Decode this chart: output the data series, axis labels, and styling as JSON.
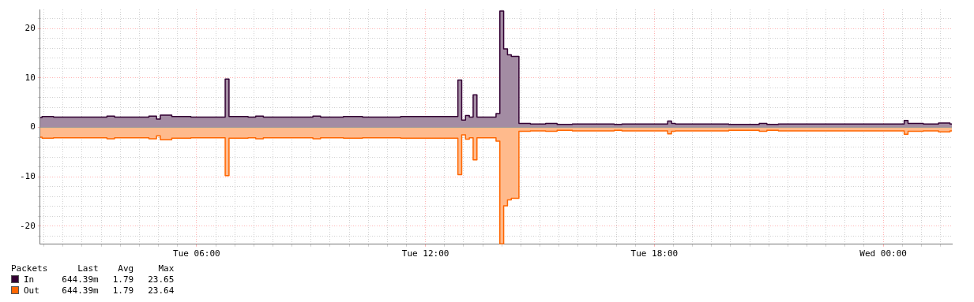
{
  "chart_data": {
    "type": "area",
    "categories": [
      null,
      null,
      null,
      null,
      null,
      null,
      null,
      null,
      null,
      null,
      null,
      null,
      null,
      null,
      null,
      null,
      null,
      null,
      null,
      null,
      null,
      null,
      null,
      null,
      null,
      null,
      null,
      null,
      null,
      null,
      null,
      null,
      null,
      null,
      null,
      null,
      null,
      null,
      null,
      null,
      null,
      "Tue 06:00",
      null,
      null,
      null,
      null,
      null,
      null,
      null,
      null,
      null,
      null,
      null,
      null,
      null,
      null,
      null,
      null,
      null,
      null,
      null,
      null,
      null,
      null,
      null,
      null,
      null,
      null,
      null,
      null,
      null,
      null,
      null,
      null,
      null,
      null,
      null,
      null,
      null,
      null,
      null,
      null,
      null,
      null,
      null,
      null,
      null,
      null,
      null,
      null,
      null,
      null,
      null,
      null,
      null,
      null,
      null,
      null,
      null,
      null,
      null,
      "Tue 12:00",
      null,
      null,
      null,
      null,
      null,
      null,
      null,
      null,
      null,
      null,
      null,
      null,
      null,
      null,
      null,
      null,
      null,
      null,
      null,
      null,
      null,
      null,
      null,
      null,
      null,
      null,
      null,
      null,
      null,
      null,
      null,
      null,
      null,
      null,
      null,
      null,
      null,
      null,
      null,
      null,
      null,
      null,
      null,
      null,
      null,
      null,
      null,
      null,
      null,
      null,
      null,
      null,
      null,
      null,
      null,
      null,
      null,
      null,
      null,
      "Tue 18:00",
      null,
      null,
      null,
      null,
      null,
      null,
      null,
      null,
      null,
      null,
      null,
      null,
      null,
      null,
      null,
      null,
      null,
      null,
      null,
      null,
      null,
      null,
      null,
      null,
      null,
      null,
      null,
      null,
      null,
      null,
      null,
      null,
      null,
      null,
      null,
      null,
      null,
      null,
      null,
      null,
      null,
      null,
      null,
      null,
      null,
      null,
      null,
      null,
      null,
      null,
      null,
      null,
      null,
      null,
      null,
      null,
      null,
      null,
      null,
      "Wed 00:00",
      null,
      null,
      null,
      null,
      null,
      null,
      null,
      null,
      null,
      null,
      null,
      null,
      null,
      null,
      null,
      null,
      null,
      null
    ],
    "series": [
      {
        "name": "In",
        "color": "#330033",
        "values": [
          2.0,
          2.2,
          2.2,
          2.2,
          2.1,
          2.1,
          2.1,
          2.1,
          2.1,
          2.1,
          2.1,
          2.1,
          2.1,
          2.1,
          2.1,
          2.1,
          2.1,
          2.1,
          2.3,
          2.3,
          2.1,
          2.1,
          2.1,
          2.1,
          2.1,
          2.1,
          2.1,
          2.1,
          2.1,
          2.3,
          2.3,
          1.7,
          2.5,
          2.5,
          2.5,
          2.2,
          2.2,
          2.2,
          2.2,
          2.2,
          2.1,
          2.1,
          2.1,
          2.1,
          2.1,
          2.1,
          2.1,
          2.1,
          2.1,
          9.8,
          2.2,
          2.2,
          2.2,
          2.2,
          2.2,
          2.1,
          2.1,
          2.3,
          2.3,
          2.1,
          2.1,
          2.1,
          2.1,
          2.1,
          2.1,
          2.1,
          2.1,
          2.1,
          2.1,
          2.1,
          2.1,
          2.1,
          2.3,
          2.3,
          2.1,
          2.1,
          2.1,
          2.1,
          2.1,
          2.1,
          2.2,
          2.2,
          2.2,
          2.2,
          2.2,
          2.1,
          2.1,
          2.1,
          2.1,
          2.1,
          2.1,
          2.1,
          2.1,
          2.1,
          2.1,
          2.2,
          2.2,
          2.2,
          2.2,
          2.2,
          2.2,
          2.2,
          2.2,
          2.2,
          2.2,
          2.2,
          2.2,
          2.2,
          2.2,
          2.2,
          9.6,
          1.5,
          2.4,
          2.1,
          6.6,
          2.1,
          2.1,
          2.1,
          2.1,
          2.1,
          2.8,
          23.6,
          15.9,
          14.7,
          14.4,
          14.4,
          0.8,
          0.8,
          0.8,
          0.7,
          0.7,
          0.7,
          0.7,
          0.8,
          0.8,
          0.8,
          0.6,
          0.6,
          0.6,
          0.6,
          0.7,
          0.7,
          0.7,
          0.7,
          0.7,
          0.7,
          0.7,
          0.7,
          0.7,
          0.7,
          0.7,
          0.6,
          0.6,
          0.7,
          0.7,
          0.7,
          0.7,
          0.7,
          0.7,
          0.7,
          0.7,
          0.7,
          0.7,
          0.7,
          0.7,
          1.3,
          0.8,
          0.7,
          0.7,
          0.7,
          0.7,
          0.7,
          0.7,
          0.7,
          0.7,
          0.7,
          0.7,
          0.7,
          0.7,
          0.7,
          0.7,
          0.6,
          0.6,
          0.6,
          0.6,
          0.6,
          0.6,
          0.6,
          0.6,
          0.8,
          0.8,
          0.6,
          0.6,
          0.6,
          0.7,
          0.7,
          0.7,
          0.7,
          0.7,
          0.7,
          0.7,
          0.7,
          0.7,
          0.7,
          0.7,
          0.7,
          0.7,
          0.7,
          0.7,
          0.7,
          0.7,
          0.7,
          0.7,
          0.7,
          0.7,
          0.7,
          0.7,
          0.7,
          0.7,
          0.7,
          0.7,
          0.7,
          0.7,
          0.7,
          0.7,
          0.7,
          0.7,
          1.4,
          0.8,
          0.8,
          0.8,
          0.8,
          0.7,
          0.7,
          0.7,
          0.7,
          0.9,
          0.9,
          0.9,
          0.7
        ]
      },
      {
        "name": "Out",
        "color": "#ff6600",
        "values": [
          -2.0,
          -2.2,
          -2.2,
          -2.2,
          -2.1,
          -2.1,
          -2.1,
          -2.1,
          -2.1,
          -2.1,
          -2.1,
          -2.1,
          -2.1,
          -2.1,
          -2.1,
          -2.1,
          -2.1,
          -2.1,
          -2.3,
          -2.3,
          -2.1,
          -2.1,
          -2.1,
          -2.1,
          -2.1,
          -2.1,
          -2.1,
          -2.1,
          -2.1,
          -2.3,
          -2.3,
          -1.7,
          -2.5,
          -2.5,
          -2.5,
          -2.2,
          -2.2,
          -2.2,
          -2.2,
          -2.2,
          -2.1,
          -2.1,
          -2.1,
          -2.1,
          -2.1,
          -2.1,
          -2.1,
          -2.1,
          -2.1,
          -9.8,
          -2.2,
          -2.2,
          -2.2,
          -2.2,
          -2.2,
          -2.1,
          -2.1,
          -2.3,
          -2.3,
          -2.1,
          -2.1,
          -2.1,
          -2.1,
          -2.1,
          -2.1,
          -2.1,
          -2.1,
          -2.1,
          -2.1,
          -2.1,
          -2.1,
          -2.1,
          -2.3,
          -2.3,
          -2.1,
          -2.1,
          -2.1,
          -2.1,
          -2.1,
          -2.1,
          -2.2,
          -2.2,
          -2.2,
          -2.2,
          -2.2,
          -2.1,
          -2.1,
          -2.1,
          -2.1,
          -2.1,
          -2.1,
          -2.1,
          -2.1,
          -2.1,
          -2.1,
          -2.2,
          -2.2,
          -2.2,
          -2.2,
          -2.2,
          -2.2,
          -2.2,
          -2.2,
          -2.2,
          -2.2,
          -2.2,
          -2.2,
          -2.2,
          -2.2,
          -2.2,
          -9.6,
          -1.5,
          -2.4,
          -2.1,
          -6.6,
          -2.1,
          -2.1,
          -2.1,
          -2.1,
          -2.1,
          -2.8,
          -23.6,
          -15.9,
          -14.7,
          -14.4,
          -14.4,
          -0.8,
          -0.8,
          -0.8,
          -0.7,
          -0.7,
          -0.7,
          -0.7,
          -0.8,
          -0.8,
          -0.8,
          -0.6,
          -0.6,
          -0.6,
          -0.6,
          -0.7,
          -0.7,
          -0.7,
          -0.7,
          -0.7,
          -0.7,
          -0.7,
          -0.7,
          -0.7,
          -0.7,
          -0.7,
          -0.6,
          -0.6,
          -0.7,
          -0.7,
          -0.7,
          -0.7,
          -0.7,
          -0.7,
          -0.7,
          -0.7,
          -0.7,
          -0.7,
          -0.7,
          -0.7,
          -1.3,
          -0.8,
          -0.7,
          -0.7,
          -0.7,
          -0.7,
          -0.7,
          -0.7,
          -0.7,
          -0.7,
          -0.7,
          -0.7,
          -0.7,
          -0.7,
          -0.7,
          -0.7,
          -0.6,
          -0.6,
          -0.6,
          -0.6,
          -0.6,
          -0.6,
          -0.6,
          -0.6,
          -0.8,
          -0.8,
          -0.6,
          -0.6,
          -0.6,
          -0.7,
          -0.7,
          -0.7,
          -0.7,
          -0.7,
          -0.7,
          -0.7,
          -0.7,
          -0.7,
          -0.7,
          -0.7,
          -0.7,
          -0.7,
          -0.7,
          -0.7,
          -0.7,
          -0.7,
          -0.7,
          -0.7,
          -0.7,
          -0.7,
          -0.7,
          -0.7,
          -0.7,
          -0.7,
          -0.7,
          -0.7,
          -0.7,
          -0.7,
          -0.7,
          -0.7,
          -0.7,
          -0.7,
          -1.4,
          -0.8,
          -0.8,
          -0.8,
          -0.8,
          -0.7,
          -0.7,
          -0.7,
          -0.7,
          -0.9,
          -0.9,
          -0.9,
          -0.7
        ]
      }
    ],
    "ylim": [
      -23.7,
      23.9
    ],
    "yticks": [
      {
        "value": -22,
        "label": null
      },
      -20,
      {
        "value": -18,
        "label": null
      },
      {
        "value": -16,
        "label": null
      },
      {
        "value": -14,
        "label": null
      },
      {
        "value": -12,
        "label": null
      },
      -10,
      {
        "value": -8,
        "label": null
      },
      {
        "value": -6,
        "label": null
      },
      {
        "value": -4,
        "label": null
      },
      {
        "value": -2,
        "label": null
      },
      0,
      {
        "value": 2,
        "label": null
      },
      {
        "value": 4,
        "label": null
      },
      {
        "value": 6,
        "label": null
      },
      {
        "value": 8,
        "label": null
      },
      10,
      {
        "value": 12,
        "label": null
      },
      {
        "value": 14,
        "label": null
      },
      {
        "value": 16,
        "label": null
      },
      {
        "value": 18,
        "label": null
      },
      20,
      {
        "value": 22,
        "label": null
      }
    ],
    "grid": true,
    "legend": "bottom left",
    "legend_title": "Packets",
    "annotations": [
      "Last",
      "Avg",
      "Max",
      "644.39m",
      "1.79",
      "23.65",
      "644.39m",
      "1.79",
      "23.64"
    ]
  }
}
